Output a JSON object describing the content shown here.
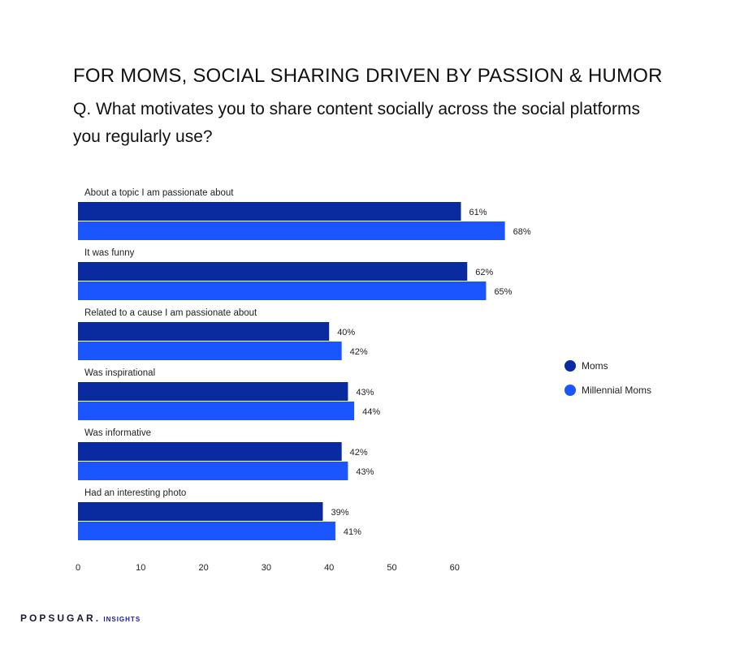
{
  "header": {
    "title": "FOR MOMS, SOCIAL SHARING DRIVEN BY PASSION & HUMOR",
    "subtitle": "Q. What motivates you to share content socially across the social platforms you regularly use?"
  },
  "brand": {
    "name": "POPSUGAR",
    "dot": ".",
    "suffix": "INSIGHTS"
  },
  "colors": {
    "moms": "#0a2aa0",
    "millennial_moms": "#1a55ff"
  },
  "chart_data": {
    "type": "bar",
    "orientation": "horizontal",
    "categories": [
      "About a topic I am passionate about",
      "It was funny",
      "Related to a cause I am passionate about",
      "Was inspirational",
      "Was informative",
      "Had an interesting photo"
    ],
    "series": [
      {
        "name": "Moms",
        "color": "#0a2aa0",
        "values": [
          61,
          62,
          40,
          43,
          42,
          39
        ]
      },
      {
        "name": "Millennial Moms",
        "color": "#1a55ff",
        "values": [
          68,
          65,
          42,
          44,
          43,
          41
        ]
      }
    ],
    "data_labels": [
      [
        "61%",
        "62%",
        "40%",
        "43%",
        "42%",
        "39%"
      ],
      [
        "68%",
        "65%",
        "42%",
        "44%",
        "43%",
        "41%"
      ]
    ],
    "xticks": [
      0,
      10,
      20,
      30,
      40,
      50,
      60
    ],
    "xlim": [
      0,
      70
    ],
    "grid": false,
    "legend": "right"
  }
}
